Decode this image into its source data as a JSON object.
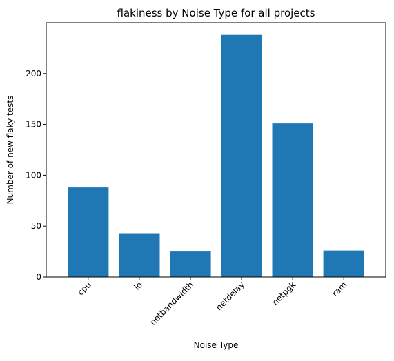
{
  "chart_data": {
    "type": "bar",
    "title": "flakiness by Noise Type for all projects",
    "xlabel": "Noise Type",
    "ylabel": "Number of new flaky tests",
    "categories": [
      "cpu",
      "io",
      "netbandwidth",
      "netdelay",
      "netpgk",
      "ram"
    ],
    "values": [
      88,
      43,
      25,
      238,
      151,
      26
    ],
    "ylim": [
      0,
      250
    ],
    "yticks": [
      0,
      50,
      100,
      150,
      200
    ],
    "grid": false,
    "bar_color": "#1f77b4",
    "x_tick_rotation_deg": 45
  }
}
